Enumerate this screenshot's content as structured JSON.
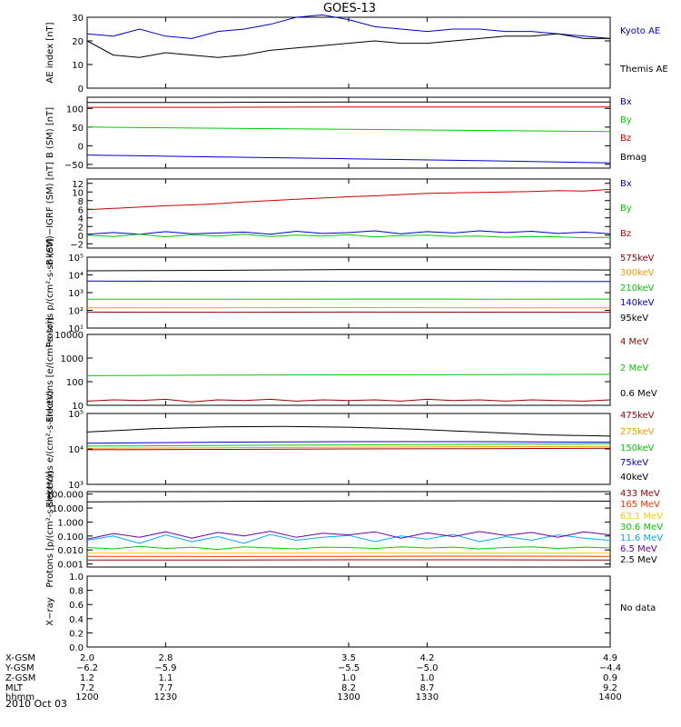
{
  "title": "GOES-13",
  "date_label": "2010 Oct 03",
  "chart_data": [
    {
      "type": "line",
      "ylabel": "AE index [nT]",
      "ylim": [
        0,
        30
      ],
      "ytick_labels": [
        "0",
        "10",
        "20",
        "30"
      ],
      "xlim": [
        1200,
        1400
      ],
      "legend_placement": "right",
      "series": [
        {
          "name": "Kyoto AE",
          "color": "#0000cc",
          "x": [
            1200,
            1210,
            1220,
            1230,
            1240,
            1250,
            1260,
            1270,
            1280,
            1290,
            1300,
            1310,
            1320,
            1330,
            1340,
            1350,
            1360,
            1370,
            1380,
            1390,
            1400
          ],
          "y": [
            23,
            22,
            25,
            22,
            21,
            24,
            25,
            27,
            30,
            31,
            29,
            26,
            25,
            24,
            25,
            25,
            24,
            24,
            23,
            22,
            21
          ]
        },
        {
          "name": "Themis AE",
          "color": "#000000",
          "x": [
            1200,
            1210,
            1220,
            1230,
            1240,
            1250,
            1260,
            1270,
            1280,
            1290,
            1300,
            1310,
            1320,
            1330,
            1340,
            1350,
            1360,
            1370,
            1380,
            1390,
            1400
          ],
          "y": [
            20,
            14,
            13,
            15,
            14,
            13,
            14,
            16,
            17,
            18,
            19,
            20,
            19,
            19,
            20,
            21,
            22,
            22,
            23,
            21,
            21
          ]
        }
      ]
    },
    {
      "type": "line",
      "ylabel": "B (SM) [nT]",
      "ylim": [
        -60,
        130
      ],
      "ytick_labels": [
        "−50",
        "0",
        "50",
        "100"
      ],
      "ytick_values": [
        -50,
        0,
        50,
        100
      ],
      "xlim": [
        1200,
        1400
      ],
      "legend_placement": "right",
      "series": [
        {
          "name": "Bx",
          "color": "#0000cc",
          "x": [
            1200,
            1250,
            1300,
            1350,
            1400
          ],
          "y": [
            -25,
            -30,
            -35,
            -40,
            -46
          ]
        },
        {
          "name": "By",
          "color": "#00cc00",
          "x": [
            1200,
            1250,
            1300,
            1350,
            1400
          ],
          "y": [
            50,
            47,
            44,
            41,
            38
          ]
        },
        {
          "name": "Bz",
          "color": "#cc0000",
          "x": [
            1200,
            1250,
            1300,
            1350,
            1400
          ],
          "y": [
            103,
            103,
            104,
            104,
            104
          ]
        },
        {
          "name": "Bmag",
          "color": "#000000",
          "x": [
            1200,
            1250,
            1300,
            1350,
            1400
          ],
          "y": [
            116,
            116,
            117,
            117,
            117
          ]
        }
      ]
    },
    {
      "type": "line",
      "ylabel": "B (SM)−IGRF (SM) [nT]",
      "ylim": [
        -3,
        13
      ],
      "ytick_labels": [
        "−2",
        "0",
        "2",
        "4",
        "6",
        "8",
        "10",
        "12"
      ],
      "ytick_values": [
        -2,
        0,
        2,
        4,
        6,
        8,
        10,
        12
      ],
      "xlim": [
        1200,
        1400
      ],
      "legend_placement": "right",
      "series": [
        {
          "name": "Bx",
          "color": "#0000cc",
          "x": [
            1200,
            1210,
            1220,
            1230,
            1240,
            1250,
            1260,
            1270,
            1280,
            1290,
            1300,
            1310,
            1320,
            1330,
            1340,
            1350,
            1360,
            1370,
            1380,
            1390,
            1400
          ],
          "y": [
            0.2,
            0.6,
            0.2,
            0.8,
            0.3,
            0.5,
            0.7,
            0.2,
            0.9,
            0.4,
            0.6,
            1.0,
            0.3,
            0.8,
            0.5,
            1.0,
            0.6,
            0.9,
            0.4,
            0.7,
            0.3
          ]
        },
        {
          "name": "By",
          "color": "#00cc00",
          "x": [
            1200,
            1210,
            1220,
            1230,
            1240,
            1250,
            1260,
            1270,
            1280,
            1290,
            1300,
            1310,
            1320,
            1330,
            1340,
            1350,
            1360,
            1370,
            1380,
            1390,
            1400
          ],
          "y": [
            0.0,
            -0.3,
            0.2,
            -0.4,
            0.1,
            -0.2,
            0.2,
            -0.3,
            0.0,
            -0.2,
            0.1,
            -0.4,
            -0.1,
            0.0,
            -0.3,
            -0.2,
            -0.5,
            -0.3,
            -0.4,
            -0.6,
            -0.5
          ]
        },
        {
          "name": "Bz",
          "color": "#cc0000",
          "x": [
            1200,
            1210,
            1220,
            1230,
            1240,
            1250,
            1260,
            1270,
            1280,
            1290,
            1300,
            1310,
            1320,
            1330,
            1340,
            1350,
            1360,
            1370,
            1380,
            1390,
            1400
          ],
          "y": [
            5.9,
            6.2,
            6.5,
            6.8,
            7.0,
            7.3,
            7.7,
            8.0,
            8.3,
            8.6,
            8.9,
            9.1,
            9.4,
            9.7,
            9.8,
            9.9,
            10.0,
            10.1,
            10.3,
            10.2,
            10.6
          ]
        }
      ]
    },
    {
      "type": "line",
      "ylabel": "Protons p/(cm²-s-sr-keV)",
      "yscale": "log",
      "ylim": [
        10,
        100000
      ],
      "ytick_labels": [
        "10¹",
        "10²",
        "10³",
        "10⁴",
        "10⁵"
      ],
      "ytick_values": [
        10,
        100,
        1000,
        10000,
        100000
      ],
      "xlim": [
        1200,
        1400
      ],
      "legend_placement": "right",
      "series": [
        {
          "name": "575keV",
          "color": "#990000",
          "x": [
            1200,
            1250,
            1300,
            1350,
            1400
          ],
          "y": [
            80,
            78,
            80,
            79,
            78
          ]
        },
        {
          "name": "300keV",
          "color": "#ff9900",
          "x": [
            1200,
            1250,
            1300,
            1350,
            1400
          ],
          "y": [
            140,
            140,
            142,
            140,
            140
          ]
        },
        {
          "name": "210keV",
          "color": "#00cc00",
          "x": [
            1200,
            1250,
            1300,
            1350,
            1400
          ],
          "y": [
            420,
            420,
            430,
            425,
            430
          ]
        },
        {
          "name": "140keV",
          "color": "#0000cc",
          "x": [
            1200,
            1250,
            1300,
            1350,
            1400
          ],
          "y": [
            4500,
            4400,
            4300,
            4300,
            4200
          ]
        },
        {
          "name": "95keV",
          "color": "#000000",
          "x": [
            1200,
            1250,
            1300,
            1350,
            1400
          ],
          "y": [
            17000,
            18000,
            20000,
            20000,
            19000
          ]
        }
      ]
    },
    {
      "type": "line",
      "ylabel": "Electrons [e/(cm²-s-sr)]",
      "yscale": "log",
      "ylim": [
        10,
        10000
      ],
      "ytick_labels": [
        "10",
        "100",
        "1000",
        "10000"
      ],
      "ytick_values": [
        10,
        100,
        1000,
        10000
      ],
      "xlim": [
        1200,
        1400
      ],
      "legend_placement": "right",
      "series": [
        {
          "name": "4 MeV",
          "color": "#990000",
          "x": [
            1200,
            1210,
            1220,
            1230,
            1240,
            1250,
            1260,
            1270,
            1280,
            1290,
            1300,
            1310,
            1320,
            1330,
            1340,
            1350,
            1360,
            1370,
            1380,
            1390,
            1400
          ],
          "y": [
            15,
            17,
            16,
            18,
            14,
            17,
            16,
            18,
            15,
            17,
            16,
            17,
            15,
            18,
            16,
            17,
            15,
            17,
            16,
            15,
            17
          ]
        },
        {
          "name": "2 MeV",
          "color": "#00cc00",
          "x": [
            1200,
            1250,
            1300,
            1350,
            1400
          ],
          "y": [
            180,
            190,
            195,
            200,
            205
          ]
        },
        {
          "name": "0.6 MeV",
          "color": "#000000",
          "x": [
            1200,
            1250,
            1300,
            1350,
            1400
          ],
          "y": [
            10000,
            10000,
            10000,
            10000,
            10000
          ]
        }
      ]
    },
    {
      "type": "line",
      "ylabel": "Electrons e/(cm²-s-sr-keV)",
      "yscale": "log",
      "ylim": [
        1000,
        100000
      ],
      "ytick_labels": [
        "10³",
        "10⁴",
        "10⁵"
      ],
      "ytick_values": [
        1000,
        10000,
        100000
      ],
      "xlim": [
        1200,
        1400
      ],
      "legend_placement": "right",
      "series": [
        {
          "name": "475keV",
          "color": "#990000",
          "x": [
            1200,
            1250,
            1300,
            1350,
            1400
          ],
          "y": [
            9500,
            9700,
            10000,
            10200,
            10500
          ]
        },
        {
          "name": "275keV",
          "color": "#ff9900",
          "x": [
            1200,
            1250,
            1300,
            1350,
            1400
          ],
          "y": [
            10500,
            10800,
            11200,
            11500,
            11800
          ]
        },
        {
          "name": "150keV",
          "color": "#00cc00",
          "x": [
            1200,
            1250,
            1300,
            1350,
            1400
          ],
          "y": [
            12000,
            12500,
            13000,
            13500,
            14000
          ]
        },
        {
          "name": "75keV",
          "color": "#0000cc",
          "x": [
            1200,
            1250,
            1300,
            1350,
            1400
          ],
          "y": [
            14500,
            15500,
            16000,
            16000,
            15500
          ]
        },
        {
          "name": "40keV",
          "color": "#000000",
          "x": [
            1200,
            1225,
            1250,
            1275,
            1300,
            1325,
            1350,
            1375,
            1400
          ],
          "y": [
            30000,
            37000,
            42000,
            43000,
            41000,
            36000,
            30000,
            25000,
            23000
          ]
        }
      ]
    },
    {
      "type": "line",
      "ylabel": "Protons [p/(cm²-s-sr-keV)]",
      "yscale": "log",
      "ylim": [
        0.0006,
        150
      ],
      "ytick_labels": [
        "0.001",
        "0.010",
        "0.100",
        "1.000",
        "10.000",
        "100.000"
      ],
      "ytick_values": [
        0.001,
        0.01,
        0.1,
        1,
        10,
        100
      ],
      "xlim": [
        1200,
        1400
      ],
      "legend_placement": "right",
      "series": [
        {
          "name": "433 MeV",
          "color": "#990000",
          "x": [
            1200,
            1250,
            1300,
            1350,
            1400
          ],
          "y": [
            0.0019,
            0.0019,
            0.002,
            0.002,
            0.0019
          ]
        },
        {
          "name": "165 MeV",
          "color": "#ff3300",
          "x": [
            1200,
            1250,
            1300,
            1350,
            1400
          ],
          "y": [
            0.0035,
            0.0034,
            0.0035,
            0.0036,
            0.0035
          ]
        },
        {
          "name": "63.1 MeV",
          "color": "#ffcc00",
          "x": [
            1200,
            1250,
            1300,
            1350,
            1400
          ],
          "y": [
            0.006,
            0.006,
            0.0062,
            0.006,
            0.006
          ]
        },
        {
          "name": "30.6 MeV",
          "color": "#00cc00",
          "x": [
            1200,
            1210,
            1220,
            1230,
            1240,
            1250,
            1260,
            1270,
            1280,
            1290,
            1300,
            1310,
            1320,
            1330,
            1340,
            1350,
            1360,
            1370,
            1380,
            1390,
            1400
          ],
          "y": [
            0.015,
            0.012,
            0.018,
            0.013,
            0.016,
            0.011,
            0.017,
            0.014,
            0.012,
            0.016,
            0.015,
            0.013,
            0.017,
            0.014,
            0.016,
            0.012,
            0.015,
            0.017,
            0.013,
            0.016,
            0.014
          ]
        },
        {
          "name": "11.6 MeV",
          "color": "#00aaff",
          "x": [
            1200,
            1210,
            1220,
            1230,
            1240,
            1250,
            1260,
            1270,
            1280,
            1290,
            1300,
            1310,
            1320,
            1330,
            1340,
            1350,
            1360,
            1370,
            1380,
            1390,
            1400
          ],
          "y": [
            0.05,
            0.1,
            0.03,
            0.12,
            0.04,
            0.09,
            0.03,
            0.13,
            0.05,
            0.08,
            0.11,
            0.04,
            0.1,
            0.06,
            0.13,
            0.04,
            0.09,
            0.05,
            0.12,
            0.07,
            0.05
          ]
        },
        {
          "name": "6.5 MeV",
          "color": "#6600aa",
          "x": [
            1200,
            1210,
            1220,
            1230,
            1240,
            1250,
            1260,
            1270,
            1280,
            1290,
            1300,
            1310,
            1320,
            1330,
            1340,
            1350,
            1360,
            1370,
            1380,
            1390,
            1400
          ],
          "y": [
            0.06,
            0.15,
            0.08,
            0.2,
            0.07,
            0.18,
            0.1,
            0.22,
            0.08,
            0.16,
            0.12,
            0.2,
            0.07,
            0.17,
            0.09,
            0.21,
            0.11,
            0.18,
            0.08,
            0.2,
            0.12
          ]
        },
        {
          "name": "2.5 MeV",
          "color": "#000000",
          "x": [
            1200,
            1250,
            1300,
            1350,
            1400
          ],
          "y": [
            28,
            30,
            32,
            33,
            31
          ]
        }
      ]
    },
    {
      "type": "line",
      "ylabel": "X−ray",
      "ylim": [
        0,
        1
      ],
      "ytick_labels": [
        "0.0",
        "0.2",
        "0.4",
        "0.6",
        "0.8",
        "1.0"
      ],
      "ytick_values": [
        0,
        0.2,
        0.4,
        0.6,
        0.8,
        1.0
      ],
      "xlim": [
        1200,
        1400
      ],
      "legend_placement": "right",
      "no_data_text": "No data",
      "series": []
    }
  ],
  "x_axis": {
    "rows": [
      {
        "label": "X-GSM",
        "values": [
          "2.0",
          "2.8",
          "3.5",
          "4.2",
          "4.9"
        ]
      },
      {
        "label": "Y-GSM",
        "values": [
          "−6.2",
          "−5.9",
          "−5.5",
          "−5.0",
          "−4.4"
        ]
      },
      {
        "label": "Z-GSM",
        "values": [
          "1.2",
          "1.1",
          "1.0",
          "1.0",
          "0.9"
        ]
      },
      {
        "label": "MLT",
        "values": [
          "7.2",
          "7.7",
          "8.2",
          "8.7",
          "9.2"
        ]
      },
      {
        "label": "hhmm",
        "values": [
          "1200",
          "1230",
          "1300",
          "1330",
          "1400"
        ]
      }
    ],
    "tick_times": [
      1200,
      1230,
      1300,
      1330,
      1400
    ]
  }
}
